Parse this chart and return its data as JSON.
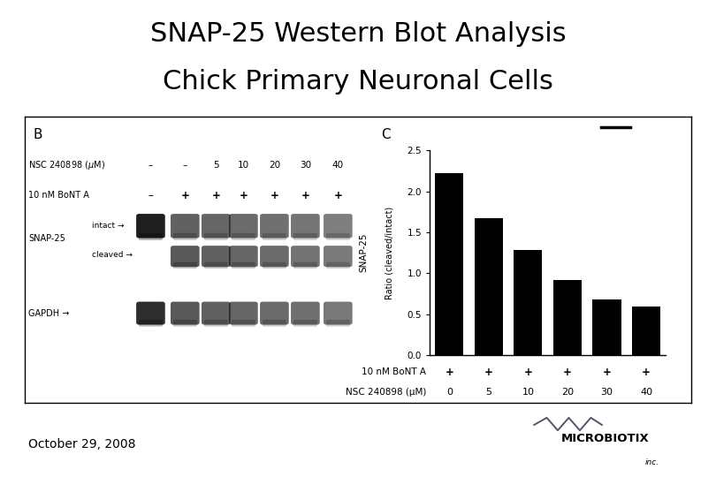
{
  "title_line1": "SNAP-25 Western Blot Analysis",
  "title_line2": "Chick Primary Neuronal Cells",
  "title_fontsize": 22,
  "title_fontweight": "normal",
  "date_text": "October 29, 2008",
  "date_fontsize": 10,
  "panel_b_label": "B",
  "panel_c_label": "C",
  "bar_values": [
    2.22,
    1.67,
    1.28,
    0.92,
    0.68,
    0.6
  ],
  "bar_color": "#000000",
  "ylim": [
    0,
    2.5
  ],
  "yticks": [
    0.0,
    0.5,
    1.0,
    1.5,
    2.0,
    2.5
  ],
  "ylabel_top": "SNAP-25",
  "ylabel_bottom": "Ratio (cleaved/intact)",
  "bont_row_label": "10 nM BoNT A",
  "nsc_row_label": "NSC 240898 (μM)",
  "bont_values": [
    "+",
    "+",
    "+",
    "+",
    "+",
    "+"
  ],
  "nsc_values": [
    "0",
    "5",
    "10",
    "20",
    "30",
    "40"
  ],
  "background_color": "#ffffff",
  "box_color": "#000000",
  "nsc_lane_labels": [
    "–",
    "–",
    "5",
    "10",
    "20",
    "30",
    "40"
  ],
  "bont_lane_labels": [
    "–",
    "+",
    "+",
    "+",
    "+",
    "+",
    "+"
  ],
  "intact_alphas": [
    0.88,
    0.62,
    0.6,
    0.58,
    0.56,
    0.54,
    0.5
  ],
  "cleaved_alphas": [
    0.0,
    0.65,
    0.62,
    0.6,
    0.58,
    0.55,
    0.52
  ],
  "gapdh_alphas": [
    0.82,
    0.65,
    0.62,
    0.6,
    0.58,
    0.56,
    0.53
  ]
}
